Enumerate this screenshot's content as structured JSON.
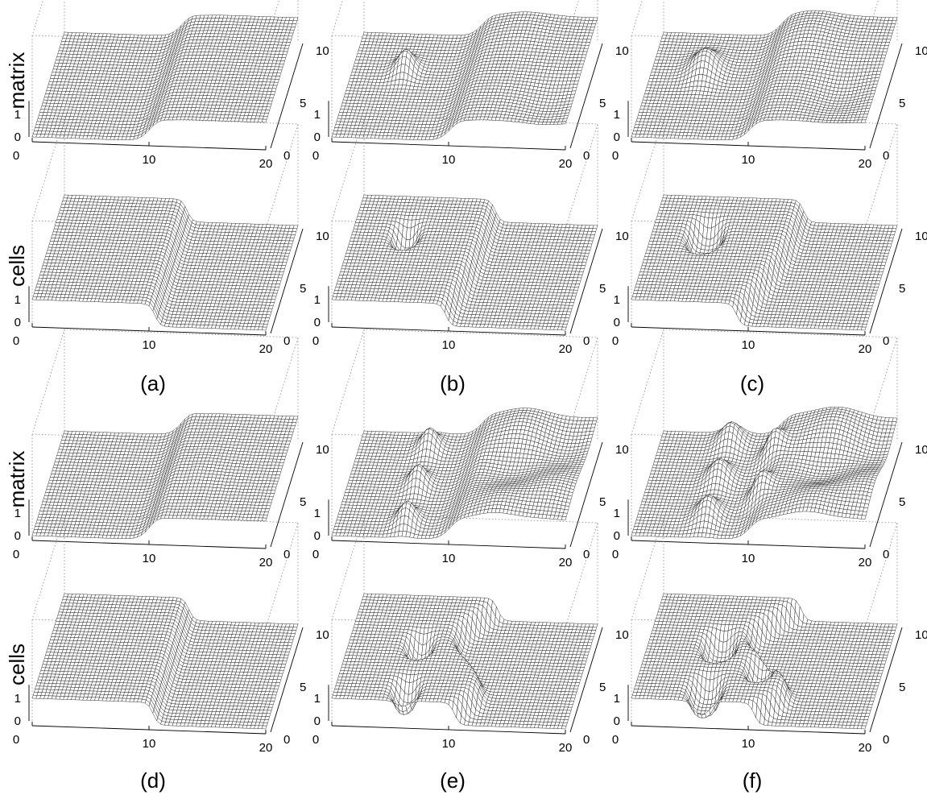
{
  "figure": {
    "row_labels": [
      "matrix",
      "cells",
      "matrix",
      "cells"
    ],
    "panel_labels": [
      "(a)",
      "(b)",
      "(c)",
      "(d)",
      "(e)",
      "(f)"
    ]
  },
  "chart_data": [
    {
      "type": "surface",
      "panel": "(a)",
      "zlabel": "matrix",
      "xlim": [
        0,
        20
      ],
      "ylim": [
        0,
        10
      ],
      "zlim": [
        0,
        1
      ],
      "x_ticks": [
        "0",
        "10",
        "20"
      ],
      "y_ticks": [
        "0",
        "5",
        "10"
      ],
      "z_ticks": [
        "0",
        "1"
      ],
      "features": {
        "wave_front_x": 10.5,
        "front_height": 0.25,
        "holes": [],
        "bumps": []
      }
    },
    {
      "type": "surface",
      "panel": "(a)",
      "zlabel": "cells",
      "xlim": [
        0,
        20
      ],
      "ylim": [
        0,
        10
      ],
      "zlim": [
        0,
        1
      ],
      "x_ticks": [
        "0",
        "10",
        "20"
      ],
      "y_ticks": [
        "0",
        "5",
        "10"
      ],
      "z_ticks": [
        "0",
        "1"
      ],
      "features": {
        "step_x": 10.5,
        "plateau": 1,
        "curve": 0,
        "holes": []
      }
    },
    {
      "type": "surface",
      "panel": "(b)",
      "zlabel": "matrix",
      "xlim": [
        0,
        20
      ],
      "ylim": [
        0,
        10
      ],
      "zlim": [
        0,
        1
      ],
      "x_ticks": [
        "0",
        "10",
        "20"
      ],
      "y_ticks": [
        "0",
        "5",
        "10"
      ],
      "z_ticks": [
        "0",
        "1"
      ],
      "features": {
        "wave_front_x": 10.5,
        "front_height": 0.2,
        "holes": [
          {
            "x": 4.5,
            "y": 6.5,
            "r": 1.0
          }
        ],
        "bumps": [
          {
            "x": 14,
            "y": 9,
            "a": 0.18
          },
          {
            "x": 18,
            "y": 2,
            "a": -0.25
          }
        ]
      }
    },
    {
      "type": "surface",
      "panel": "(b)",
      "zlabel": "cells",
      "xlim": [
        0,
        20
      ],
      "ylim": [
        0,
        10
      ],
      "zlim": [
        0,
        1
      ],
      "x_ticks": [
        "0",
        "10",
        "20"
      ],
      "y_ticks": [
        "0",
        "5",
        "10"
      ],
      "z_ticks": [
        "0",
        "1"
      ],
      "features": {
        "step_x": 10.5,
        "plateau": 1,
        "curve": 1.5,
        "holes": [
          {
            "x": 4.5,
            "y": 6.5,
            "r": 1.0
          }
        ]
      }
    },
    {
      "type": "surface",
      "panel": "(c)",
      "zlabel": "matrix",
      "xlim": [
        0,
        20
      ],
      "ylim": [
        0,
        10
      ],
      "zlim": [
        0,
        1
      ],
      "x_ticks": [
        "0",
        "10",
        "20"
      ],
      "y_ticks": [
        "0",
        "5",
        "10"
      ],
      "z_ticks": [
        "0",
        "1"
      ],
      "features": {
        "wave_front_x": 10.5,
        "front_height": 0.2,
        "holes": [
          {
            "x": 4.5,
            "y": 6.5,
            "r": 1.4
          }
        ],
        "bumps": [
          {
            "x": 13,
            "y": 8.5,
            "a": 0.3
          },
          {
            "x": 17,
            "y": 3,
            "a": -0.35
          }
        ]
      }
    },
    {
      "type": "surface",
      "panel": "(c)",
      "zlabel": "cells",
      "xlim": [
        0,
        20
      ],
      "ylim": [
        0,
        10
      ],
      "zlim": [
        0,
        1
      ],
      "x_ticks": [
        "0",
        "10",
        "20"
      ],
      "y_ticks": [
        "0",
        "5",
        "10"
      ],
      "z_ticks": [
        "0",
        "1"
      ],
      "features": {
        "step_x": 10.5,
        "plateau": 1,
        "curve": 3.0,
        "holes": [
          {
            "x": 4.5,
            "y": 6.5,
            "r": 1.4
          }
        ]
      }
    },
    {
      "type": "surface",
      "panel": "(d)",
      "zlabel": "matrix",
      "xlim": [
        0,
        20
      ],
      "ylim": [
        0,
        10
      ],
      "zlim": [
        0,
        1
      ],
      "x_ticks": [
        "0",
        "10",
        "20"
      ],
      "y_ticks": [
        "0",
        "5",
        "10"
      ],
      "z_ticks": [
        "0",
        "1"
      ],
      "features": {
        "wave_front_x": 10.5,
        "front_height": 0.3,
        "holes": [],
        "bumps": [
          {
            "x": 13,
            "y": 5,
            "a": 0.1
          }
        ]
      }
    },
    {
      "type": "surface",
      "panel": "(d)",
      "zlabel": "cells",
      "xlim": [
        0,
        20
      ],
      "ylim": [
        0,
        10
      ],
      "zlim": [
        0,
        1
      ],
      "x_ticks": [
        "0",
        "10",
        "20"
      ],
      "y_ticks": [
        "0",
        "5",
        "10"
      ],
      "z_ticks": [
        "0",
        "1"
      ],
      "features": {
        "step_x": 10.5,
        "plateau": 1,
        "curve": 0.3,
        "holes": []
      }
    },
    {
      "type": "surface",
      "panel": "(e)",
      "zlabel": "matrix",
      "xlim": [
        0,
        20
      ],
      "ylim": [
        0,
        10
      ],
      "zlim": [
        0,
        1
      ],
      "x_ticks": [
        "0",
        "10",
        "20"
      ],
      "y_ticks": [
        "0",
        "5",
        "10"
      ],
      "z_ticks": [
        "0",
        "1"
      ],
      "features": {
        "wave_front_x": 10.5,
        "front_height": 0.2,
        "holes": [
          {
            "x": 6,
            "y": 8.5,
            "r": 1.0
          },
          {
            "x": 6,
            "y": 5,
            "r": 1.0
          },
          {
            "x": 6,
            "y": 1.5,
            "r": 1.0
          }
        ],
        "bumps": [
          {
            "x": 14,
            "y": 8.5,
            "a": 0.4
          },
          {
            "x": 14,
            "y": 5,
            "a": -0.4
          },
          {
            "x": 14,
            "y": 1.5,
            "a": 0.4
          },
          {
            "x": 18,
            "y": 7,
            "a": -0.35
          },
          {
            "x": 18,
            "y": 3,
            "a": 0.35
          }
        ]
      }
    },
    {
      "type": "surface",
      "panel": "(e)",
      "zlabel": "cells",
      "xlim": [
        0,
        20
      ],
      "ylim": [
        0,
        10
      ],
      "zlim": [
        0,
        1
      ],
      "x_ticks": [
        "0",
        "10",
        "20"
      ],
      "y_ticks": [
        "0",
        "5",
        "10"
      ],
      "z_ticks": [
        "0",
        "1"
      ],
      "features": {
        "step_x": 10.5,
        "plateau": 1,
        "curve": 0,
        "wavy": 1.6,
        "holes": [
          {
            "x": 6,
            "y": 5.5,
            "r": 1.0
          },
          {
            "x": 6,
            "y": 1.2,
            "r": 1.0
          }
        ]
      }
    },
    {
      "type": "surface",
      "panel": "(f)",
      "zlabel": "matrix",
      "xlim": [
        0,
        20
      ],
      "ylim": [
        0,
        10
      ],
      "zlim": [
        0,
        1
      ],
      "x_ticks": [
        "0",
        "10",
        "20"
      ],
      "y_ticks": [
        "0",
        "5",
        "10"
      ],
      "z_ticks": [
        "0",
        "1"
      ],
      "features": {
        "wave_front_x": 10.5,
        "front_height": 0.2,
        "holes": [
          {
            "x": 6,
            "y": 9,
            "r": 1.2
          },
          {
            "x": 6,
            "y": 5.5,
            "r": 1.2
          },
          {
            "x": 6,
            "y": 2,
            "r": 1.2
          },
          {
            "x": 10,
            "y": 7.5,
            "r": 1.0
          },
          {
            "x": 10,
            "y": 3.5,
            "r": 1.0
          }
        ],
        "bumps": [
          {
            "x": 15,
            "y": 8.5,
            "a": 0.5
          },
          {
            "x": 15,
            "y": 5,
            "a": -0.45
          },
          {
            "x": 15,
            "y": 1.5,
            "a": 0.5
          },
          {
            "x": 19,
            "y": 7,
            "a": -0.4
          },
          {
            "x": 19,
            "y": 3,
            "a": 0.4
          }
        ]
      }
    },
    {
      "type": "surface",
      "panel": "(f)",
      "zlabel": "cells",
      "xlim": [
        0,
        20
      ],
      "ylim": [
        0,
        10
      ],
      "zlim": [
        0,
        1
      ],
      "x_ticks": [
        "0",
        "10",
        "20"
      ],
      "y_ticks": [
        "0",
        "5",
        "10"
      ],
      "z_ticks": [
        "0",
        "1"
      ],
      "features": {
        "step_x": 10.5,
        "plateau": 1,
        "curve": 0,
        "wavy": 2.2,
        "holes": [
          {
            "x": 6,
            "y": 5.5,
            "r": 1.3
          },
          {
            "x": 6,
            "y": 1.2,
            "r": 1.3
          },
          {
            "x": 10,
            "y": 3.5,
            "r": 1.0
          }
        ]
      }
    }
  ]
}
